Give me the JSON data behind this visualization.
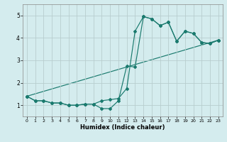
{
  "xlabel": "Humidex (Indice chaleur)",
  "bg_color": "#d4ecee",
  "grid_color": "#b8cece",
  "line_color": "#1a7a6e",
  "xlim": [
    -0.5,
    23.5
  ],
  "ylim": [
    0.5,
    5.5
  ],
  "yticks": [
    1,
    2,
    3,
    4,
    5
  ],
  "xticks": [
    0,
    1,
    2,
    3,
    4,
    5,
    6,
    7,
    8,
    9,
    10,
    11,
    12,
    13,
    14,
    15,
    16,
    17,
    18,
    19,
    20,
    21,
    22,
    23
  ],
  "line1_x": [
    0,
    1,
    2,
    3,
    4,
    5,
    6,
    7,
    8,
    9,
    10,
    11,
    12,
    13,
    14,
    15,
    16,
    17,
    18,
    19,
    20,
    21,
    22,
    23
  ],
  "line1_y": [
    1.4,
    1.2,
    1.2,
    1.1,
    1.1,
    1.0,
    1.0,
    1.05,
    1.05,
    1.2,
    1.25,
    1.3,
    1.75,
    4.3,
    4.95,
    4.85,
    4.55,
    4.7,
    3.85,
    4.3,
    4.2,
    3.8,
    3.75,
    3.9
  ],
  "line2_x": [
    0,
    1,
    2,
    3,
    4,
    5,
    6,
    7,
    8,
    9,
    10,
    11,
    12,
    13,
    14,
    15,
    16,
    17,
    18,
    19,
    20,
    21,
    22,
    23
  ],
  "line2_y": [
    1.4,
    1.2,
    1.2,
    1.1,
    1.1,
    1.0,
    1.0,
    1.05,
    1.05,
    0.85,
    0.85,
    1.2,
    2.75,
    2.7,
    4.95,
    4.85,
    4.55,
    4.7,
    3.85,
    4.3,
    4.2,
    3.8,
    3.75,
    3.9
  ],
  "line3_x": [
    0,
    23
  ],
  "line3_y": [
    1.4,
    3.9
  ],
  "marker_size": 2.0,
  "line_width": 0.85
}
